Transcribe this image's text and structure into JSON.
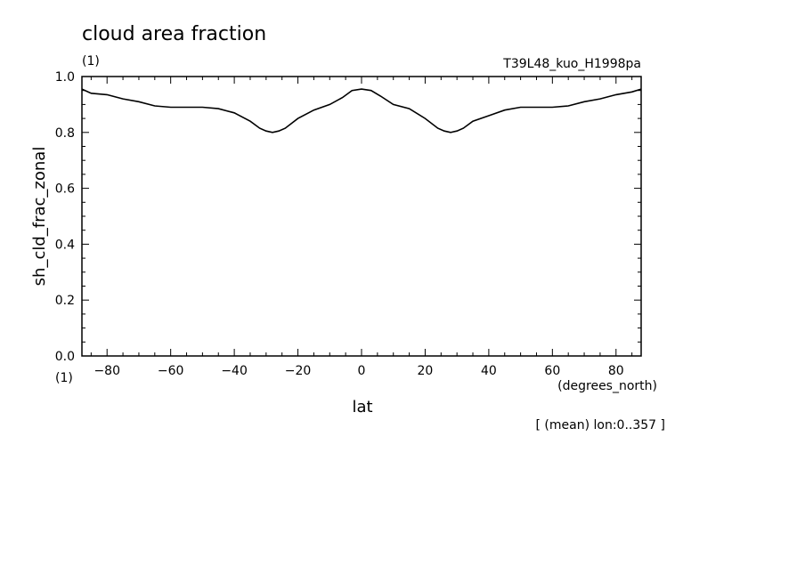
{
  "header": {
    "title": "cloud area fraction",
    "units": "(1)",
    "run": "T39L48_kuo_H1998pa",
    "footer": "[ (mean) lon:0..357 ]"
  },
  "chart_data": {
    "type": "line",
    "title": "cloud area fraction",
    "xlabel": "lat",
    "xunits": "(degrees_north)",
    "ylabel": "sh_cld_frac_zonal",
    "yunits": "(1)",
    "xlim": [
      -87.9,
      87.9
    ],
    "ylim": [
      0.0,
      1.0
    ],
    "grid": false,
    "x_ticks": [
      "-80",
      "-60",
      "-40",
      "-20",
      "0",
      "20",
      "40",
      "60",
      "80"
    ],
    "y_ticks": [
      "0.0",
      "0.2",
      "0.4",
      "0.6",
      "0.8",
      "1.0"
    ],
    "series": [
      {
        "x": [
          -87.9,
          -85,
          -80,
          -75,
          -70,
          -65,
          -60,
          -55,
          -50,
          -45,
          -40,
          -35,
          -32,
          -30,
          -28,
          -26,
          -24,
          -20,
          -15,
          -10,
          -6,
          -3,
          0,
          3,
          6,
          10,
          15,
          20,
          24,
          26,
          28,
          30,
          32,
          35,
          40,
          45,
          50,
          55,
          60,
          65,
          70,
          75,
          80,
          85,
          87.9
        ],
        "y": [
          0.955,
          0.94,
          0.935,
          0.92,
          0.91,
          0.895,
          0.89,
          0.89,
          0.89,
          0.885,
          0.87,
          0.84,
          0.815,
          0.805,
          0.8,
          0.805,
          0.815,
          0.85,
          0.88,
          0.9,
          0.925,
          0.95,
          0.955,
          0.95,
          0.93,
          0.9,
          0.885,
          0.85,
          0.815,
          0.805,
          0.8,
          0.805,
          0.815,
          0.84,
          0.86,
          0.88,
          0.89,
          0.89,
          0.89,
          0.895,
          0.91,
          0.92,
          0.935,
          0.945,
          0.955
        ]
      }
    ]
  }
}
